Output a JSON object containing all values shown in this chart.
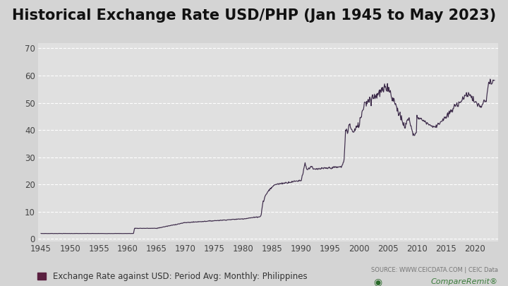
{
  "title": "Historical Exchange Rate USD/PHP (Jan 1945 to May 2023)",
  "title_fontsize": 15,
  "title_fontweight": "bold",
  "legend_label": "Exchange Rate against USD: Period Avg: Monthly: Philippines",
  "source_text": "SOURCE: WWW.CEICDATA.COM | CEIC Data",
  "line_color": "#3d2b4a",
  "plot_bg_color": "#e0e0e0",
  "fig_bg_color": "#d4d4d4",
  "ylabel_ticks": [
    0,
    10,
    20,
    30,
    40,
    50,
    60,
    70
  ],
  "xlabel_ticks": [
    1945,
    1950,
    1955,
    1960,
    1965,
    1970,
    1975,
    1980,
    1985,
    1990,
    1995,
    2000,
    2005,
    2010,
    2015,
    2020
  ],
  "xlim": [
    1944.5,
    2024
  ],
  "ylim": [
    -1,
    72
  ],
  "grid_color": "#ffffff",
  "legend_marker_color": "#5a2040",
  "tick_fontsize": 8.5,
  "legend_fontsize": 8.5
}
